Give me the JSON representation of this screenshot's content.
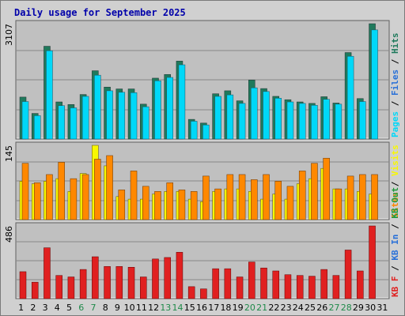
{
  "chart_data": {
    "type": "bar",
    "title": "Daily usage for September 2025",
    "categories": [
      "1",
      "2",
      "3",
      "4",
      "5",
      "6",
      "7",
      "8",
      "9",
      "10",
      "11",
      "12",
      "13",
      "14",
      "15",
      "16",
      "17",
      "18",
      "19",
      "20",
      "21",
      "22",
      "23",
      "24",
      "25",
      "26",
      "27",
      "28",
      "29",
      "30",
      "31"
    ],
    "weekend_days": [
      "6",
      "7",
      "13",
      "14",
      "20",
      "21",
      "27",
      "28"
    ],
    "panels": [
      {
        "id": "hits-files-pages",
        "max_label": "3107",
        "ylim": [
          0,
          3107
        ],
        "right_label": [
          {
            "text": "Pages",
            "color": "#00d8f8"
          },
          {
            "text": " / ",
            "color": "#000000"
          },
          {
            "text": "Files",
            "color": "#2870d8"
          },
          {
            "text": " / ",
            "color": "#000000"
          },
          {
            "text": "Hits",
            "color": "#1f7a5c"
          }
        ],
        "series": [
          {
            "key": "hits",
            "color": "#1f7a5c",
            "values": [
              1130,
              690,
              2500,
              1000,
              930,
              1200,
              1840,
              1400,
              1350,
              1350,
              940,
              1640,
              1740,
              2100,
              530,
              430,
              1220,
              1300,
              1030,
              1590,
              1360,
              1150,
              1060,
              1000,
              960,
              1140,
              970,
              2330,
              1090,
              3107,
              0
            ]
          },
          {
            "key": "files",
            "color": "#2870d8",
            "values": [
              1010,
              630,
              2380,
              900,
              840,
              1150,
              1720,
              1300,
              1260,
              1250,
              870,
              1570,
              1660,
              2000,
              480,
              380,
              1150,
              1190,
              960,
              1380,
              1280,
              1100,
              1000,
              960,
              910,
              1070,
              940,
              2230,
              1010,
              2940,
              0
            ]
          },
          {
            "key": "pages",
            "color": "#00d8f8",
            "values": [
              1010,
              630,
              2380,
              900,
              840,
              1150,
              1720,
              1300,
              1260,
              1250,
              870,
              1570,
              1660,
              2000,
              480,
              380,
              1150,
              1190,
              960,
              1380,
              1280,
              1100,
              1000,
              960,
              910,
              1070,
              940,
              2230,
              1010,
              2940,
              0
            ]
          }
        ]
      },
      {
        "id": "visits-sites",
        "max_label": "145",
        "ylim": [
          0,
          145
        ],
        "right_label": [
          {
            "text": "Sites",
            "color": "#ff8800"
          },
          {
            "text": " / ",
            "color": "#000000"
          },
          {
            "text": "Visits",
            "color": "#f8f800"
          }
        ],
        "series": [
          {
            "key": "visits",
            "color": "#f8f800",
            "values": [
              75,
              70,
              75,
              80,
              55,
              90,
              145,
              105,
              45,
              40,
              40,
              50,
              55,
              55,
              40,
              35,
              55,
              60,
              60,
              55,
              40,
              50,
              40,
              70,
              80,
              100,
              60,
              60,
              55,
              50,
              0
            ]
          },
          {
            "key": "sites",
            "color": "#ff8800",
            "values": [
              110,
              72,
              88,
              112,
              80,
              88,
              118,
              125,
              58,
              95,
              65,
              55,
              72,
              58,
              55,
              85,
              60,
              88,
              88,
              78,
              88,
              75,
              65,
              95,
              110,
              120,
              60,
              85,
              88,
              88,
              0
            ]
          }
        ]
      },
      {
        "id": "kbytes",
        "max_label": "486",
        "ylim": [
          0,
          486
        ],
        "right_label": [
          {
            "text": "KB F",
            "color": "#e02020"
          },
          {
            "text": " / ",
            "color": "#000000"
          },
          {
            "text": "KB In",
            "color": "#2870d8"
          },
          {
            "text": " / ",
            "color": "#000000"
          },
          {
            "text": "KB Out",
            "color": "#1f9a3c"
          }
        ],
        "series": [
          {
            "key": "kbf",
            "color": "#e02020",
            "values": [
              180,
              110,
              340,
              155,
              145,
              195,
              280,
              215,
              215,
              210,
              145,
              265,
              275,
              310,
              80,
              65,
              200,
              200,
              145,
              245,
              205,
              185,
              160,
              155,
              150,
              195,
              155,
              325,
              185,
              486,
              0
            ]
          }
        ]
      }
    ],
    "colors": {
      "plot_bg": "#c0c0c0",
      "frame_bg": "#d0d0d0",
      "title": "#0000aa",
      "weekday_label": "#000000",
      "weekend_label": "#1f8a4a",
      "gridline": "#888888"
    }
  }
}
